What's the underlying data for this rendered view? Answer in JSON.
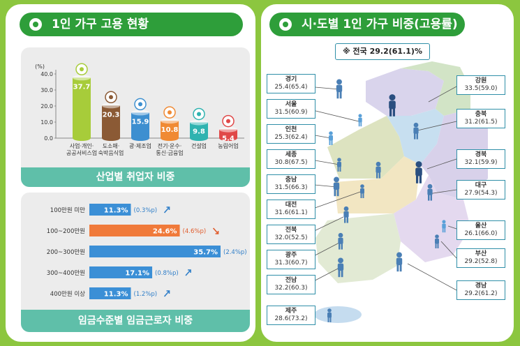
{
  "left_title": "1인 가구 고용 현황",
  "right_title": "시·도별 1인 가구 비중(고용률)",
  "chart_data": [
    {
      "type": "bar",
      "title": "산업별 취업자 비중",
      "ylabel": "(%)",
      "yticks": [
        "40.0",
        "30.0",
        "20.0",
        "10.0",
        "0.0"
      ],
      "ylim": [
        0,
        40
      ],
      "categories": [
        [
          "사업·개인·",
          "공공서비스업"
        ],
        [
          "도소매·",
          "숙박음식업"
        ],
        [
          "광·제조업"
        ],
        [
          "전기·운수·",
          "통신·금융업"
        ],
        [
          "건설업"
        ],
        [
          "농림어업"
        ]
      ],
      "values": [
        37.7,
        20.3,
        15.9,
        10.8,
        9.8,
        5.4
      ],
      "value_labels": [
        "37.7",
        "20.3",
        "15.9",
        "10.8",
        "9.8",
        "5.4"
      ],
      "colors": [
        "#a7cc3a",
        "#8b5a35",
        "#3d8fd0",
        "#f08a34",
        "#2fb3b0",
        "#e04848"
      ],
      "icons": [
        "document-icon",
        "dish-icon",
        "gear-icon",
        "phone-icon",
        "helmet-icon",
        "leaf-icon"
      ]
    },
    {
      "type": "bar",
      "orientation": "horizontal",
      "title": "임금수준별 임금근로자 비중",
      "categories": [
        "100만원 미만",
        "100~200만원",
        "200~300만원",
        "300~400만원",
        "400만원 이상"
      ],
      "values": [
        11.3,
        24.6,
        35.7,
        17.1,
        11.3
      ],
      "value_labels": [
        "11.3%",
        "24.6%",
        "35.7%",
        "17.1%",
        "11.3%"
      ],
      "changes": [
        "(0.3%p)",
        "(4.6%p)",
        "(2.4%p)",
        "(0.8%p)",
        "(1.2%p)"
      ],
      "change_direction": [
        "up",
        "down",
        "up",
        "up",
        "up"
      ],
      "highlight_index": 1,
      "colors": {
        "bar": "#3b8fd6",
        "highlight": "#f07a3a",
        "up": "#2f7ec8",
        "down": "#e05a2a"
      }
    }
  ],
  "map": {
    "national": "※ 전국 29.2(61.1)%",
    "regions": [
      {
        "name": "경기",
        "value": "25.4(65.4)"
      },
      {
        "name": "서울",
        "value": "31.5(60.9)"
      },
      {
        "name": "인천",
        "value": "25.3(62.4)"
      },
      {
        "name": "세종",
        "value": "30.8(67.5)"
      },
      {
        "name": "충남",
        "value": "31.5(66.3)"
      },
      {
        "name": "대전",
        "value": "31.6(61.1)"
      },
      {
        "name": "전북",
        "value": "32.0(52.5)"
      },
      {
        "name": "광주",
        "value": "31.3(60.7)"
      },
      {
        "name": "전남",
        "value": "32.2(60.3)"
      },
      {
        "name": "제주",
        "value": "28.6(73.2)"
      },
      {
        "name": "강원",
        "value": "33.5(59.0)"
      },
      {
        "name": "충북",
        "value": "31.2(61.5)"
      },
      {
        "name": "경북",
        "value": "32.1(59.9)"
      },
      {
        "name": "대구",
        "value": "27.9(54.3)"
      },
      {
        "name": "울산",
        "value": "26.1(66.0)"
      },
      {
        "name": "부산",
        "value": "29.2(52.8)"
      },
      {
        "name": "경남",
        "value": "29.2(61.2)"
      }
    ]
  }
}
